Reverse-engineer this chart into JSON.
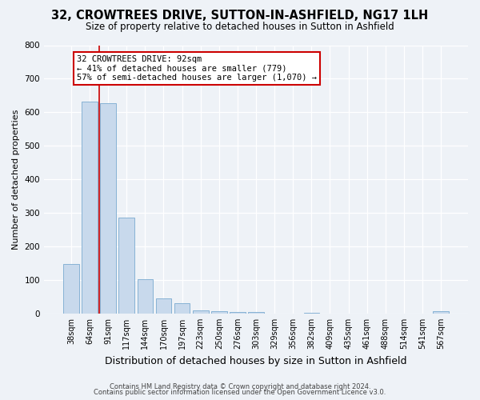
{
  "title": "32, CROWTREES DRIVE, SUTTON-IN-ASHFIELD, NG17 1LH",
  "subtitle": "Size of property relative to detached houses in Sutton in Ashfield",
  "xlabel": "Distribution of detached houses by size in Sutton in Ashfield",
  "ylabel": "Number of detached properties",
  "bar_color": "#c8d9ec",
  "bar_edge_color": "#7aaad0",
  "categories": [
    "38sqm",
    "64sqm",
    "91sqm",
    "117sqm",
    "144sqm",
    "170sqm",
    "197sqm",
    "223sqm",
    "250sqm",
    "276sqm",
    "303sqm",
    "329sqm",
    "356sqm",
    "382sqm",
    "409sqm",
    "435sqm",
    "461sqm",
    "488sqm",
    "514sqm",
    "541sqm",
    "567sqm"
  ],
  "values": [
    148,
    632,
    628,
    287,
    102,
    45,
    30,
    10,
    7,
    4,
    5,
    0,
    0,
    3,
    0,
    0,
    0,
    0,
    0,
    0,
    8
  ],
  "ylim": [
    0,
    800
  ],
  "yticks": [
    0,
    100,
    200,
    300,
    400,
    500,
    600,
    700,
    800
  ],
  "vline_bar_index": 2,
  "vline_color": "#cc0000",
  "annotation_text": "32 CROWTREES DRIVE: 92sqm\n← 41% of detached houses are smaller (779)\n57% of semi-detached houses are larger (1,070) →",
  "annotation_box_color": "#ffffff",
  "annotation_box_edge": "#cc0000",
  "footer_line1": "Contains HM Land Registry data © Crown copyright and database right 2024.",
  "footer_line2": "Contains public sector information licensed under the Open Government Licence v3.0.",
  "background_color": "#eef2f7",
  "plot_background": "#eef2f7",
  "title_fontsize": 10.5,
  "subtitle_fontsize": 8.5,
  "ylabel_fontsize": 8,
  "xlabel_fontsize": 9,
  "tick_fontsize": 7,
  "annotation_fontsize": 7.5,
  "footer_fontsize": 6
}
